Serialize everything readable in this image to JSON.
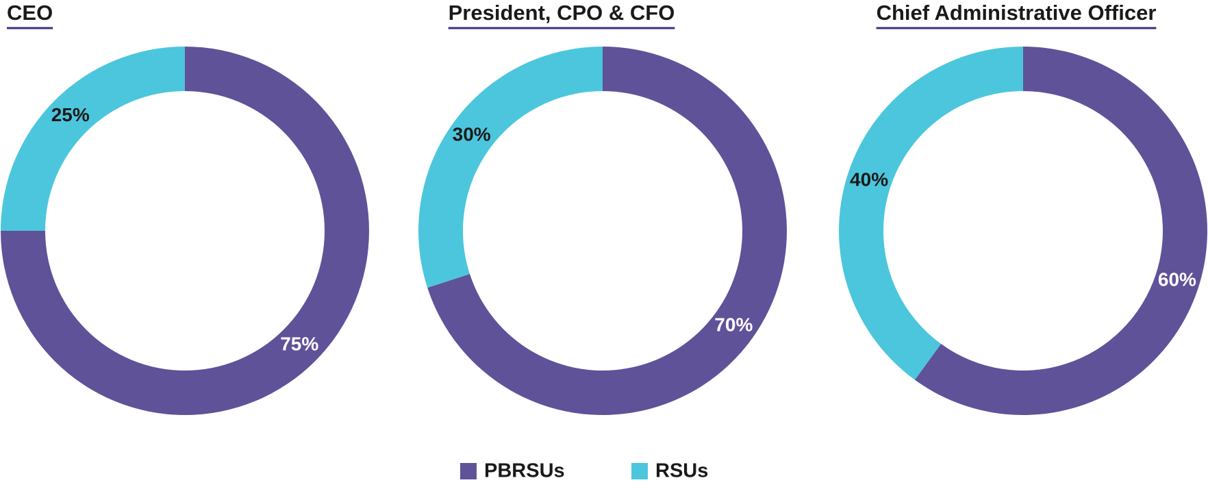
{
  "chart_data": [
    {
      "type": "pie",
      "title": "CEO",
      "categories": [
        "PBRSUs",
        "RSUs"
      ],
      "values": [
        75,
        25
      ],
      "value_labels": [
        "75%",
        "25%"
      ],
      "colors": [
        "#5f5299",
        "#4cc6dc"
      ]
    },
    {
      "type": "pie",
      "title": "President, CPO & CFO",
      "categories": [
        "PBRSUs",
        "RSUs"
      ],
      "values": [
        70,
        30
      ],
      "value_labels": [
        "70%",
        "30%"
      ],
      "colors": [
        "#5f5299",
        "#4cc6dc"
      ]
    },
    {
      "type": "pie",
      "title": "Chief Administrative Officer",
      "categories": [
        "PBRSUs",
        "RSUs"
      ],
      "values": [
        60,
        40
      ],
      "value_labels": [
        "60%",
        "40%"
      ],
      "colors": [
        "#5f5299",
        "#4cc6dc"
      ]
    }
  ]
}
